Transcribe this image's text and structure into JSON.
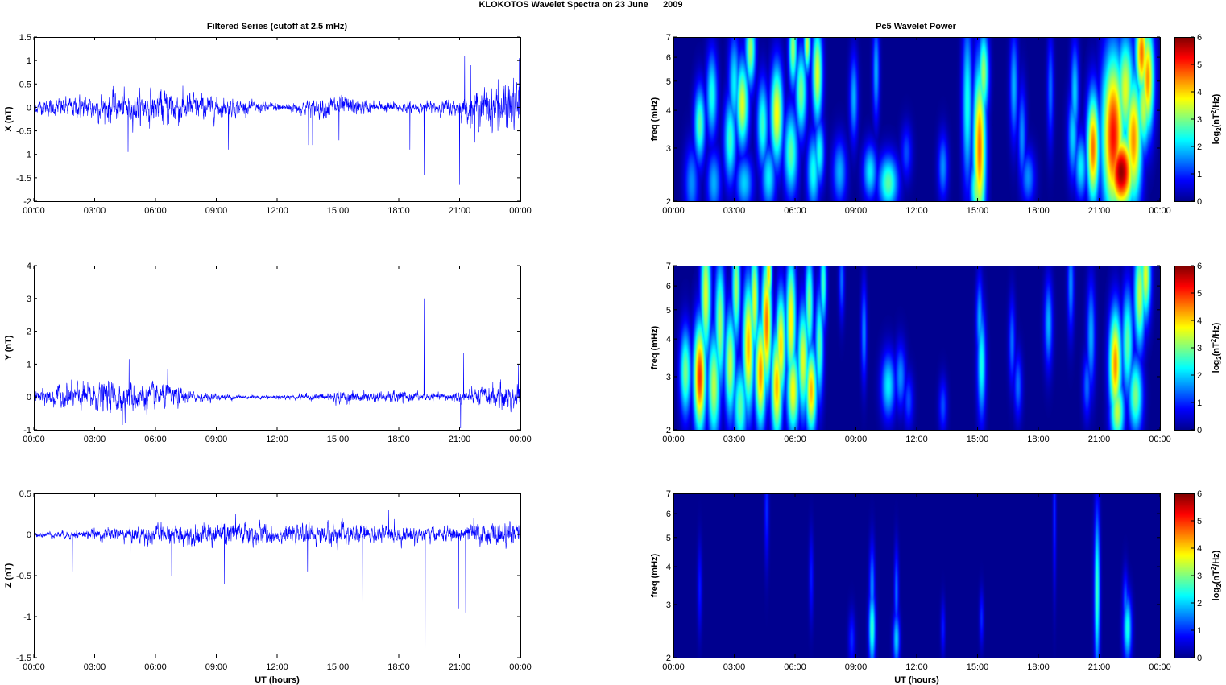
{
  "figure": {
    "title": "KLOKOTOS Wavelet Spectra on 23 June      2009",
    "left_column_title": "Filtered Series (cutoff at 2.5 mHz)",
    "right_column_title": "Pc5 Wavelet Power"
  },
  "colors": {
    "trace": "#0000ff",
    "axis": "#000000",
    "spectrum_background": "#00008f",
    "colormap": [
      "#00008f",
      "#0000ff",
      "#0080ff",
      "#00ffff",
      "#80ff80",
      "#ffff00",
      "#ff8000",
      "#ff0000",
      "#800000"
    ]
  },
  "chart_data": [
    {
      "id": "x-series",
      "type": "line",
      "ylabel": "X (nT)",
      "xlabel": "",
      "xlim": [
        0,
        24
      ],
      "ylim": [
        -2,
        1.5
      ],
      "x_ticks": [
        0,
        3,
        6,
        9,
        12,
        15,
        18,
        21,
        24
      ],
      "x_tick_labels": [
        "00:00",
        "03:00",
        "06:00",
        "09:00",
        "12:00",
        "15:00",
        "18:00",
        "21:00",
        "00:00"
      ],
      "y_ticks": [
        -2,
        -1.5,
        -1,
        -0.5,
        0,
        0.5,
        1,
        1.5
      ],
      "y_tick_labels": [
        "-2",
        "-1.5",
        "-1",
        "-0.5",
        "0",
        "0.5",
        "1",
        "1.5"
      ],
      "envelope_hours": [
        0,
        1,
        2,
        3,
        4,
        5,
        6,
        7,
        8,
        9,
        10,
        11,
        12,
        13,
        14,
        15,
        16,
        17,
        18,
        19,
        20,
        21,
        22,
        23,
        24
      ],
      "envelope_amplitude": [
        0.12,
        0.18,
        0.22,
        0.28,
        0.3,
        0.3,
        0.35,
        0.38,
        0.28,
        0.22,
        0.16,
        0.12,
        0.1,
        0.12,
        0.2,
        0.25,
        0.16,
        0.12,
        0.12,
        0.1,
        0.14,
        0.2,
        0.38,
        0.5,
        0.55
      ],
      "spikes": [
        [
          4.65,
          -0.95
        ],
        [
          9.6,
          -0.9
        ],
        [
          13.55,
          -0.8
        ],
        [
          13.75,
          -0.8
        ],
        [
          15.05,
          -0.7
        ],
        [
          18.55,
          -0.9
        ],
        [
          19.25,
          -1.45
        ],
        [
          21.0,
          -1.65
        ],
        [
          21.25,
          1.1
        ],
        [
          21.55,
          0.9
        ],
        [
          21.75,
          -0.75
        ],
        [
          23.95,
          1.05
        ],
        [
          23.35,
          0.75
        ],
        [
          22.9,
          0.6
        ]
      ]
    },
    {
      "id": "y-series",
      "type": "line",
      "ylabel": "Y (nT)",
      "xlabel": "",
      "xlim": [
        0,
        24
      ],
      "ylim": [
        -1,
        4
      ],
      "x_ticks": [
        0,
        3,
        6,
        9,
        12,
        15,
        18,
        21,
        24
      ],
      "x_tick_labels": [
        "00:00",
        "03:00",
        "06:00",
        "09:00",
        "12:00",
        "15:00",
        "18:00",
        "21:00",
        "00:00"
      ],
      "y_ticks": [
        -1,
        0,
        1,
        2,
        3,
        4
      ],
      "y_tick_labels": [
        "-1",
        "0",
        "1",
        "2",
        "3",
        "4"
      ],
      "envelope_hours": [
        0,
        1,
        2,
        3,
        4,
        5,
        6,
        7,
        8,
        9,
        10,
        11,
        12,
        13,
        14,
        15,
        16,
        17,
        18,
        19,
        20,
        21,
        22,
        23,
        24
      ],
      "envelope_amplitude": [
        0.2,
        0.32,
        0.38,
        0.42,
        0.48,
        0.45,
        0.38,
        0.3,
        0.14,
        0.1,
        0.08,
        0.06,
        0.06,
        0.08,
        0.12,
        0.18,
        0.15,
        0.16,
        0.18,
        0.14,
        0.1,
        0.18,
        0.28,
        0.4,
        0.5
      ],
      "spikes": [
        [
          4.7,
          1.15
        ],
        [
          4.5,
          -0.8
        ],
        [
          6.6,
          0.85
        ],
        [
          19.25,
          3.0
        ],
        [
          21.05,
          1.55
        ],
        [
          21.2,
          1.35
        ],
        [
          21.05,
          -0.95
        ],
        [
          23.9,
          1.0
        ],
        [
          24.0,
          -0.55
        ]
      ]
    },
    {
      "id": "z-series",
      "type": "line",
      "ylabel": "Z (nT)",
      "xlabel": "UT (hours)",
      "xlim": [
        0,
        24
      ],
      "ylim": [
        -1.5,
        0.5
      ],
      "x_ticks": [
        0,
        3,
        6,
        9,
        12,
        15,
        18,
        21,
        24
      ],
      "x_tick_labels": [
        "00:00",
        "03:00",
        "06:00",
        "09:00",
        "12:00",
        "15:00",
        "18:00",
        "21:00",
        "00:00"
      ],
      "y_ticks": [
        -1.5,
        -1,
        -0.5,
        0,
        0.5
      ],
      "y_tick_labels": [
        "-1.5",
        "-1",
        "-0.5",
        "0",
        "0.5"
      ],
      "envelope_hours": [
        0,
        1,
        2,
        3,
        4,
        5,
        6,
        7,
        8,
        9,
        10,
        11,
        12,
        13,
        14,
        15,
        16,
        17,
        18,
        19,
        20,
        21,
        22,
        23,
        24
      ],
      "envelope_amplitude": [
        0.03,
        0.04,
        0.05,
        0.06,
        0.08,
        0.1,
        0.11,
        0.12,
        0.12,
        0.14,
        0.16,
        0.14,
        0.1,
        0.1,
        0.12,
        0.14,
        0.12,
        0.1,
        0.1,
        0.1,
        0.08,
        0.1,
        0.12,
        0.14,
        0.12
      ],
      "spikes": [
        [
          1.9,
          -0.45
        ],
        [
          4.75,
          -0.65
        ],
        [
          6.8,
          -0.5
        ],
        [
          9.4,
          -0.6
        ],
        [
          9.95,
          0.25
        ],
        [
          13.5,
          -0.45
        ],
        [
          16.2,
          -0.85
        ],
        [
          17.5,
          0.3
        ],
        [
          19.3,
          -1.4
        ],
        [
          20.95,
          -0.9
        ],
        [
          21.3,
          -0.95
        ],
        [
          21.7,
          0.2
        ]
      ]
    },
    {
      "id": "x-spectrum",
      "type": "heatmap",
      "ylabel": "freq (mHz)",
      "xlabel": "",
      "colorbar_label": "log2(nT2/Hz)",
      "xlim": [
        0,
        24
      ],
      "ylim": [
        2,
        7
      ],
      "y_scale": "log",
      "clim": [
        0,
        6
      ],
      "x_ticks": [
        0,
        3,
        6,
        9,
        12,
        15,
        18,
        21,
        24
      ],
      "x_tick_labels": [
        "00:00",
        "03:00",
        "06:00",
        "09:00",
        "12:00",
        "15:00",
        "18:00",
        "21:00",
        "00:00"
      ],
      "y_ticks": [
        2,
        3,
        4,
        5,
        6,
        7
      ],
      "y_tick_labels": [
        "2",
        "3",
        "4",
        "5",
        "6",
        "7"
      ],
      "colorbar_ticks": [
        0,
        1,
        2,
        3,
        4,
        5,
        6
      ],
      "blobs": [
        [
          0.9,
          2.3,
          0.25,
          0.7,
          1.6
        ],
        [
          1.3,
          3.6,
          0.2,
          0.7,
          2.8
        ],
        [
          1.9,
          4.5,
          0.2,
          0.8,
          2.4
        ],
        [
          2.0,
          2.3,
          0.25,
          0.6,
          1.8
        ],
        [
          2.8,
          3.2,
          0.22,
          0.8,
          2.6
        ],
        [
          3.0,
          4.9,
          0.2,
          0.9,
          2.2
        ],
        [
          3.5,
          2.3,
          0.3,
          0.5,
          2.0
        ],
        [
          3.4,
          4.2,
          0.22,
          0.8,
          3.6
        ],
        [
          3.8,
          6.4,
          0.18,
          0.7,
          3.2
        ],
        [
          4.4,
          3.6,
          0.2,
          0.8,
          2.6
        ],
        [
          4.7,
          2.4,
          0.25,
          0.6,
          2.2
        ],
        [
          5.1,
          3.9,
          0.22,
          0.9,
          3.8
        ],
        [
          5.8,
          2.9,
          0.25,
          0.8,
          2.8
        ],
        [
          5.9,
          6.4,
          0.15,
          0.7,
          3.2
        ],
        [
          6.3,
          4.6,
          0.2,
          0.8,
          3.0
        ],
        [
          6.6,
          6.6,
          0.12,
          0.5,
          3.4
        ],
        [
          6.9,
          2.5,
          0.22,
          0.7,
          2.4
        ],
        [
          7.1,
          5.3,
          0.18,
          0.9,
          3.6
        ],
        [
          7.2,
          2.9,
          0.18,
          0.6,
          2.4
        ],
        [
          8.2,
          2.5,
          0.25,
          0.6,
          1.8
        ],
        [
          8.9,
          4.4,
          0.15,
          0.8,
          1.8
        ],
        [
          9.7,
          2.5,
          0.25,
          0.5,
          2.2
        ],
        [
          10.0,
          5.4,
          0.12,
          0.9,
          1.8
        ],
        [
          10.6,
          2.3,
          0.35,
          0.5,
          2.8
        ],
        [
          11.5,
          2.9,
          0.2,
          0.5,
          1.2
        ],
        [
          13.3,
          2.6,
          0.18,
          0.6,
          1.6
        ],
        [
          14.5,
          4.2,
          0.18,
          1.5,
          2.4
        ],
        [
          15.1,
          3.0,
          0.22,
          1.5,
          4.6
        ],
        [
          15.3,
          5.3,
          0.18,
          0.8,
          3.2
        ],
        [
          15.0,
          2.2,
          0.25,
          0.6,
          3.2
        ],
        [
          16.8,
          4.8,
          0.15,
          1.0,
          1.8
        ],
        [
          17.2,
          3.3,
          0.15,
          0.9,
          1.6
        ],
        [
          17.5,
          2.4,
          0.25,
          0.5,
          1.6
        ],
        [
          18.6,
          4.7,
          0.12,
          1.0,
          1.4
        ],
        [
          19.7,
          3.3,
          0.18,
          0.8,
          2.0
        ],
        [
          20.1,
          2.6,
          0.22,
          0.6,
          2.2
        ],
        [
          19.8,
          4.6,
          0.15,
          0.9,
          2.0
        ],
        [
          20.7,
          3.0,
          0.22,
          1.0,
          4.6
        ],
        [
          21.3,
          4.1,
          0.18,
          1.0,
          2.4
        ],
        [
          21.7,
          3.3,
          0.4,
          1.5,
          5.2
        ],
        [
          22.1,
          2.5,
          0.45,
          0.7,
          5.9
        ],
        [
          22.3,
          4.7,
          0.3,
          1.0,
          3.6
        ],
        [
          22.7,
          3.2,
          0.3,
          1.2,
          4.4
        ],
        [
          23.1,
          6.2,
          0.22,
          0.8,
          4.6
        ],
        [
          23.4,
          5.1,
          0.22,
          1.0,
          4.4
        ],
        [
          23.2,
          4.1,
          0.25,
          0.8,
          3.4
        ]
      ]
    },
    {
      "id": "y-spectrum",
      "type": "heatmap",
      "ylabel": "freq (mHz)",
      "xlabel": "",
      "colorbar_label": "log2(nT2/Hz)",
      "xlim": [
        0,
        24
      ],
      "ylim": [
        2,
        7
      ],
      "y_scale": "log",
      "clim": [
        0,
        6
      ],
      "x_ticks": [
        0,
        3,
        6,
        9,
        12,
        15,
        18,
        21,
        24
      ],
      "x_tick_labels": [
        "00:00",
        "03:00",
        "06:00",
        "09:00",
        "12:00",
        "15:00",
        "18:00",
        "21:00",
        "00:00"
      ],
      "y_ticks": [
        2,
        3,
        4,
        5,
        6,
        7
      ],
      "y_tick_labels": [
        "2",
        "3",
        "4",
        "5",
        "6",
        "7"
      ],
      "colorbar_ticks": [
        0,
        1,
        2,
        3,
        4,
        5,
        6
      ],
      "blobs": [
        [
          0.6,
          3.1,
          0.2,
          0.8,
          3.0
        ],
        [
          1.3,
          3.0,
          0.22,
          1.0,
          5.0
        ],
        [
          1.6,
          5.6,
          0.18,
          1.2,
          3.6
        ],
        [
          2.0,
          2.8,
          0.22,
          1.0,
          3.4
        ],
        [
          2.3,
          4.5,
          0.18,
          1.2,
          3.2
        ],
        [
          2.8,
          3.3,
          0.2,
          1.0,
          3.4
        ],
        [
          3.1,
          5.9,
          0.15,
          1.0,
          3.2
        ],
        [
          3.3,
          2.4,
          0.25,
          0.8,
          2.8
        ],
        [
          3.7,
          3.8,
          0.2,
          1.2,
          4.2
        ],
        [
          4.0,
          5.4,
          0.15,
          1.0,
          3.6
        ],
        [
          4.3,
          3.1,
          0.2,
          1.0,
          4.4
        ],
        [
          4.6,
          4.5,
          0.18,
          1.2,
          4.6
        ],
        [
          4.7,
          6.6,
          0.12,
          0.6,
          4.0
        ],
        [
          5.1,
          2.8,
          0.2,
          1.0,
          4.2
        ],
        [
          5.3,
          3.8,
          0.18,
          1.0,
          4.0
        ],
        [
          5.8,
          4.6,
          0.18,
          1.2,
          3.8
        ],
        [
          5.9,
          2.7,
          0.22,
          0.8,
          3.8
        ],
        [
          6.4,
          3.4,
          0.2,
          1.0,
          3.6
        ],
        [
          6.7,
          5.2,
          0.15,
          1.0,
          3.0
        ],
        [
          6.8,
          2.7,
          0.2,
          0.8,
          4.2
        ],
        [
          7.2,
          3.8,
          0.15,
          1.0,
          2.8
        ],
        [
          7.4,
          6.1,
          0.12,
          0.8,
          2.6
        ],
        [
          8.3,
          6.3,
          0.1,
          0.7,
          1.4
        ],
        [
          9.4,
          4.2,
          0.1,
          0.9,
          1.6
        ],
        [
          10.6,
          2.8,
          0.25,
          0.6,
          2.2
        ],
        [
          11.2,
          3.0,
          0.2,
          0.6,
          1.6
        ],
        [
          11.6,
          2.5,
          0.18,
          0.5,
          1.2
        ],
        [
          13.3,
          2.4,
          0.15,
          0.5,
          1.2
        ],
        [
          15.2,
          3.3,
          0.15,
          1.0,
          2.4
        ],
        [
          15.1,
          4.6,
          0.12,
          0.8,
          1.8
        ],
        [
          16.7,
          3.9,
          0.12,
          0.8,
          1.4
        ],
        [
          17.0,
          2.8,
          0.15,
          0.6,
          1.4
        ],
        [
          18.5,
          4.5,
          0.15,
          0.8,
          1.8
        ],
        [
          19.6,
          6.1,
          0.12,
          0.9,
          1.6
        ],
        [
          20.6,
          4.1,
          0.15,
          1.0,
          1.8
        ],
        [
          20.4,
          2.8,
          0.15,
          0.6,
          1.4
        ],
        [
          21.8,
          3.3,
          0.22,
          1.0,
          4.4
        ],
        [
          21.9,
          2.3,
          0.25,
          0.6,
          3.4
        ],
        [
          22.4,
          3.9,
          0.2,
          1.0,
          2.8
        ],
        [
          22.8,
          2.6,
          0.25,
          0.7,
          3.0
        ],
        [
          23.0,
          5.6,
          0.2,
          1.0,
          3.4
        ],
        [
          23.3,
          6.5,
          0.18,
          0.8,
          3.6
        ]
      ]
    },
    {
      "id": "z-spectrum",
      "type": "heatmap",
      "ylabel": "freq (mHz)",
      "xlabel": "UT (hours)",
      "colorbar_label": "log2(nT2/Hz)",
      "xlim": [
        0,
        24
      ],
      "ylim": [
        2,
        7
      ],
      "y_scale": "log",
      "clim": [
        0,
        6
      ],
      "x_ticks": [
        0,
        3,
        6,
        9,
        12,
        15,
        18,
        21,
        24
      ],
      "x_tick_labels": [
        "00:00",
        "03:00",
        "06:00",
        "09:00",
        "12:00",
        "15:00",
        "18:00",
        "21:00",
        "00:00"
      ],
      "y_ticks": [
        2,
        3,
        4,
        5,
        6,
        7
      ],
      "y_tick_labels": [
        "2",
        "3",
        "4",
        "5",
        "6",
        "7"
      ],
      "colorbar_ticks": [
        0,
        1,
        2,
        3,
        4,
        5,
        6
      ],
      "blobs": [
        [
          1.3,
          3.4,
          0.08,
          0.8,
          0.9
        ],
        [
          4.6,
          6.2,
          0.08,
          1.0,
          1.0
        ],
        [
          6.8,
          3.7,
          0.08,
          0.8,
          0.9
        ],
        [
          8.8,
          2.3,
          0.12,
          0.5,
          1.0
        ],
        [
          9.8,
          2.5,
          0.12,
          0.7,
          2.6
        ],
        [
          9.8,
          3.4,
          0.1,
          0.8,
          1.6
        ],
        [
          11.0,
          2.3,
          0.12,
          0.5,
          2.0
        ],
        [
          11.0,
          3.3,
          0.08,
          0.8,
          1.4
        ],
        [
          13.3,
          2.5,
          0.08,
          0.5,
          0.9
        ],
        [
          15.2,
          2.7,
          0.08,
          0.5,
          1.0
        ],
        [
          18.8,
          6.2,
          0.06,
          1.5,
          1.0
        ],
        [
          20.9,
          3.3,
          0.1,
          1.5,
          2.6
        ],
        [
          22.4,
          2.5,
          0.15,
          0.6,
          2.4
        ],
        [
          22.3,
          3.0,
          0.1,
          0.6,
          1.4
        ]
      ]
    }
  ]
}
